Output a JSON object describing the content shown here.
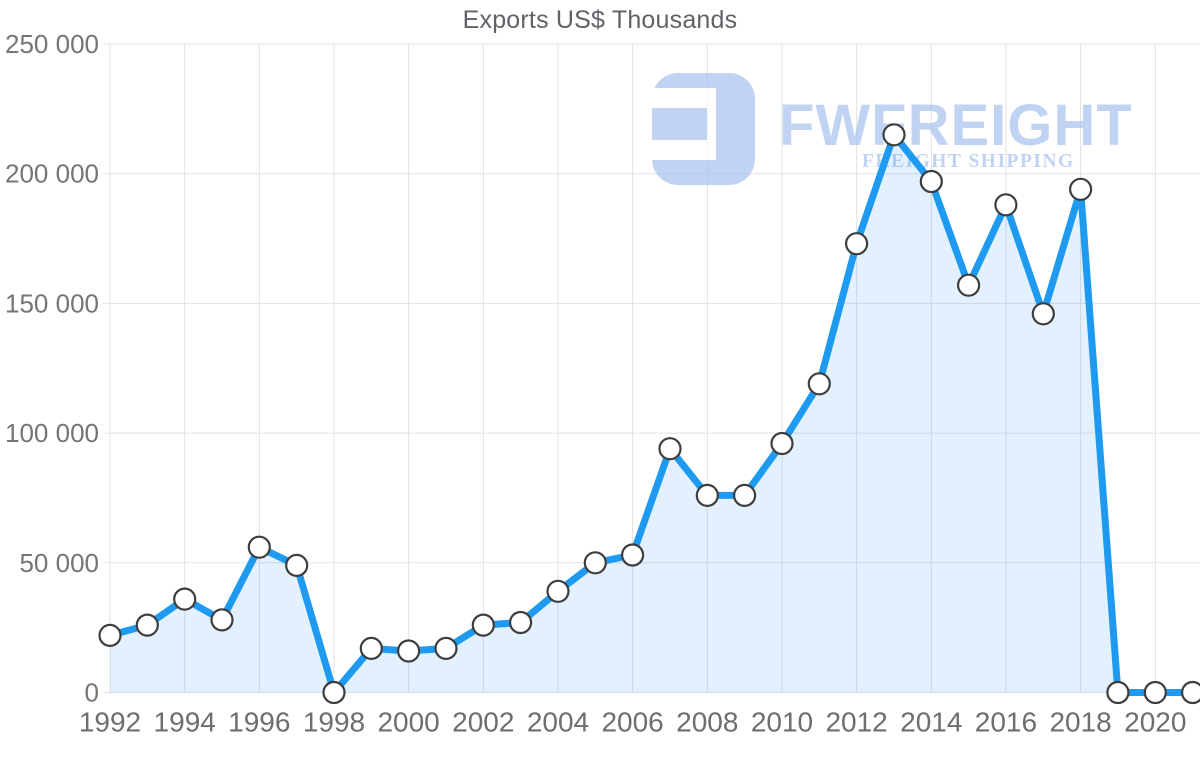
{
  "title": "Exports US$ Thousands",
  "watermark": {
    "wordmark": "FWFREIGHT",
    "tagline": "FREIGHT SHIPPING"
  },
  "colors": {
    "title_text": "#5f6368",
    "axis_text": "#757575",
    "grid": "#e2e2e2",
    "line": "#1e9bf0",
    "area_fill": "rgba(33,150,243,0.13)",
    "marker_fill": "#ffffff",
    "marker_stroke": "#3d3d3d",
    "watermark": "#a9c3ee"
  },
  "chart_data": {
    "type": "area",
    "title": "Exports US$ Thousands",
    "series_name": "Exports US$ Thousands",
    "x": [
      1992,
      1993,
      1994,
      1995,
      1996,
      1997,
      1998,
      1999,
      2000,
      2001,
      2002,
      2003,
      2004,
      2005,
      2006,
      2007,
      2008,
      2009,
      2010,
      2011,
      2012,
      2013,
      2014,
      2015,
      2016,
      2017,
      2018,
      2019,
      2020,
      2021
    ],
    "values": [
      22000,
      26000,
      36000,
      28000,
      56000,
      49000,
      0,
      17000,
      16000,
      17000,
      26000,
      27000,
      39000,
      50000,
      53000,
      94000,
      76000,
      76000,
      96000,
      119000,
      173000,
      215000,
      197000,
      157000,
      188000,
      146000,
      194000,
      0,
      0,
      0
    ],
    "xlim": [
      1992,
      2021
    ],
    "ylim": [
      0,
      250000
    ],
    "yticks": [
      0,
      50000,
      100000,
      150000,
      200000,
      250000
    ],
    "ytick_labels": [
      "0",
      "50 000",
      "100 000",
      "150 000",
      "200 000",
      "250 000"
    ],
    "xticks": [
      1992,
      1994,
      1996,
      1998,
      2000,
      2002,
      2004,
      2006,
      2008,
      2010,
      2012,
      2014,
      2016,
      2018,
      2020
    ],
    "xtick_labels": [
      "1992",
      "1994",
      "1996",
      "1998",
      "2000",
      "2002",
      "2004",
      "2006",
      "2008",
      "2010",
      "2012",
      "2014",
      "2016",
      "2018",
      "2020"
    ],
    "grid": true,
    "legend": "none",
    "marker": "circle-open"
  }
}
